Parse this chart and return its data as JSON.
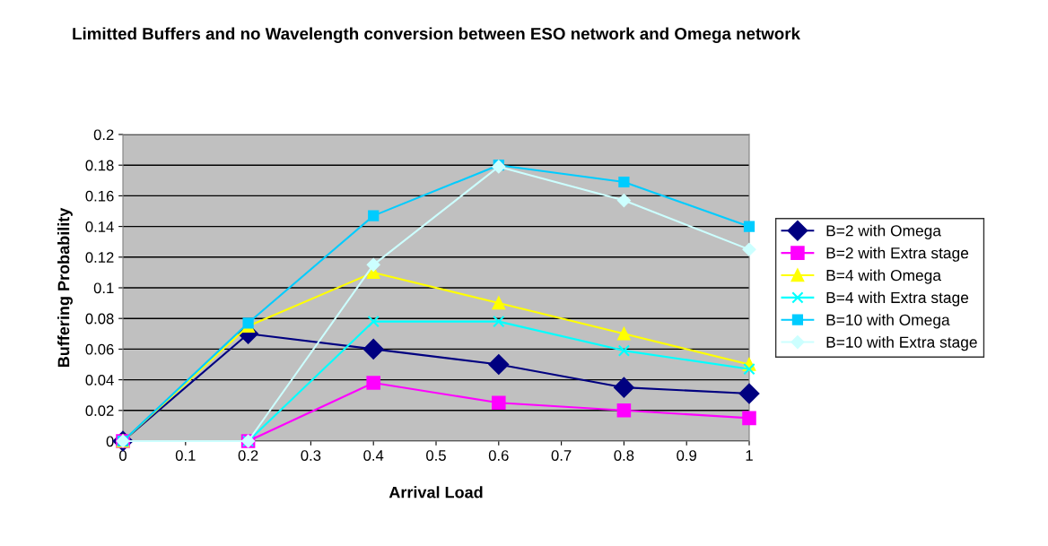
{
  "chart_data": {
    "type": "line",
    "title": "Limitted Buffers and no Wavelength conversion between ESO network and Omega network",
    "xlabel": "Arrival Load",
    "ylabel": "Buffering Probability",
    "x": [
      0,
      0.2,
      0.4,
      0.6,
      0.8,
      1
    ],
    "xlim": [
      0,
      1
    ],
    "xticks": [
      0,
      0.1,
      0.2,
      0.3,
      0.4,
      0.5,
      0.6,
      0.7,
      0.8,
      0.9,
      1
    ],
    "ylim": [
      0,
      0.2
    ],
    "yticks": [
      0,
      0.02,
      0.04,
      0.06,
      0.08,
      0.1,
      0.12,
      0.14,
      0.16,
      0.18,
      0.2
    ],
    "grid": "y",
    "legend": "right",
    "series": [
      {
        "name": "B=2 with Omega",
        "color": "#000080",
        "marker": "diamond",
        "values": [
          0,
          0.07,
          0.06,
          0.05,
          0.035,
          0.031
        ]
      },
      {
        "name": "B=2 with Extra stage",
        "color": "#ff00ff",
        "marker": "square",
        "values": [
          0,
          0,
          0.038,
          0.025,
          0.02,
          0.015
        ]
      },
      {
        "name": "B=4 with Omega",
        "color": "#ffff00",
        "marker": "triangle",
        "values": [
          0,
          0.075,
          0.11,
          0.09,
          0.07,
          0.05
        ]
      },
      {
        "name": "B=4 with Extra stage",
        "color": "#00ffff",
        "marker": "cross",
        "values": [
          0,
          0,
          0.078,
          0.078,
          0.059,
          0.047
        ]
      },
      {
        "name": "B=10 with Omega",
        "color": "#00ccff",
        "marker": "square",
        "values": [
          0,
          0.077,
          0.147,
          0.18,
          0.169,
          0.14
        ]
      },
      {
        "name": "B=10 with Extra stage",
        "color": "#ccffff",
        "marker": "diamond",
        "values": [
          0,
          0,
          0.115,
          0.179,
          0.157,
          0.125
        ]
      }
    ]
  }
}
